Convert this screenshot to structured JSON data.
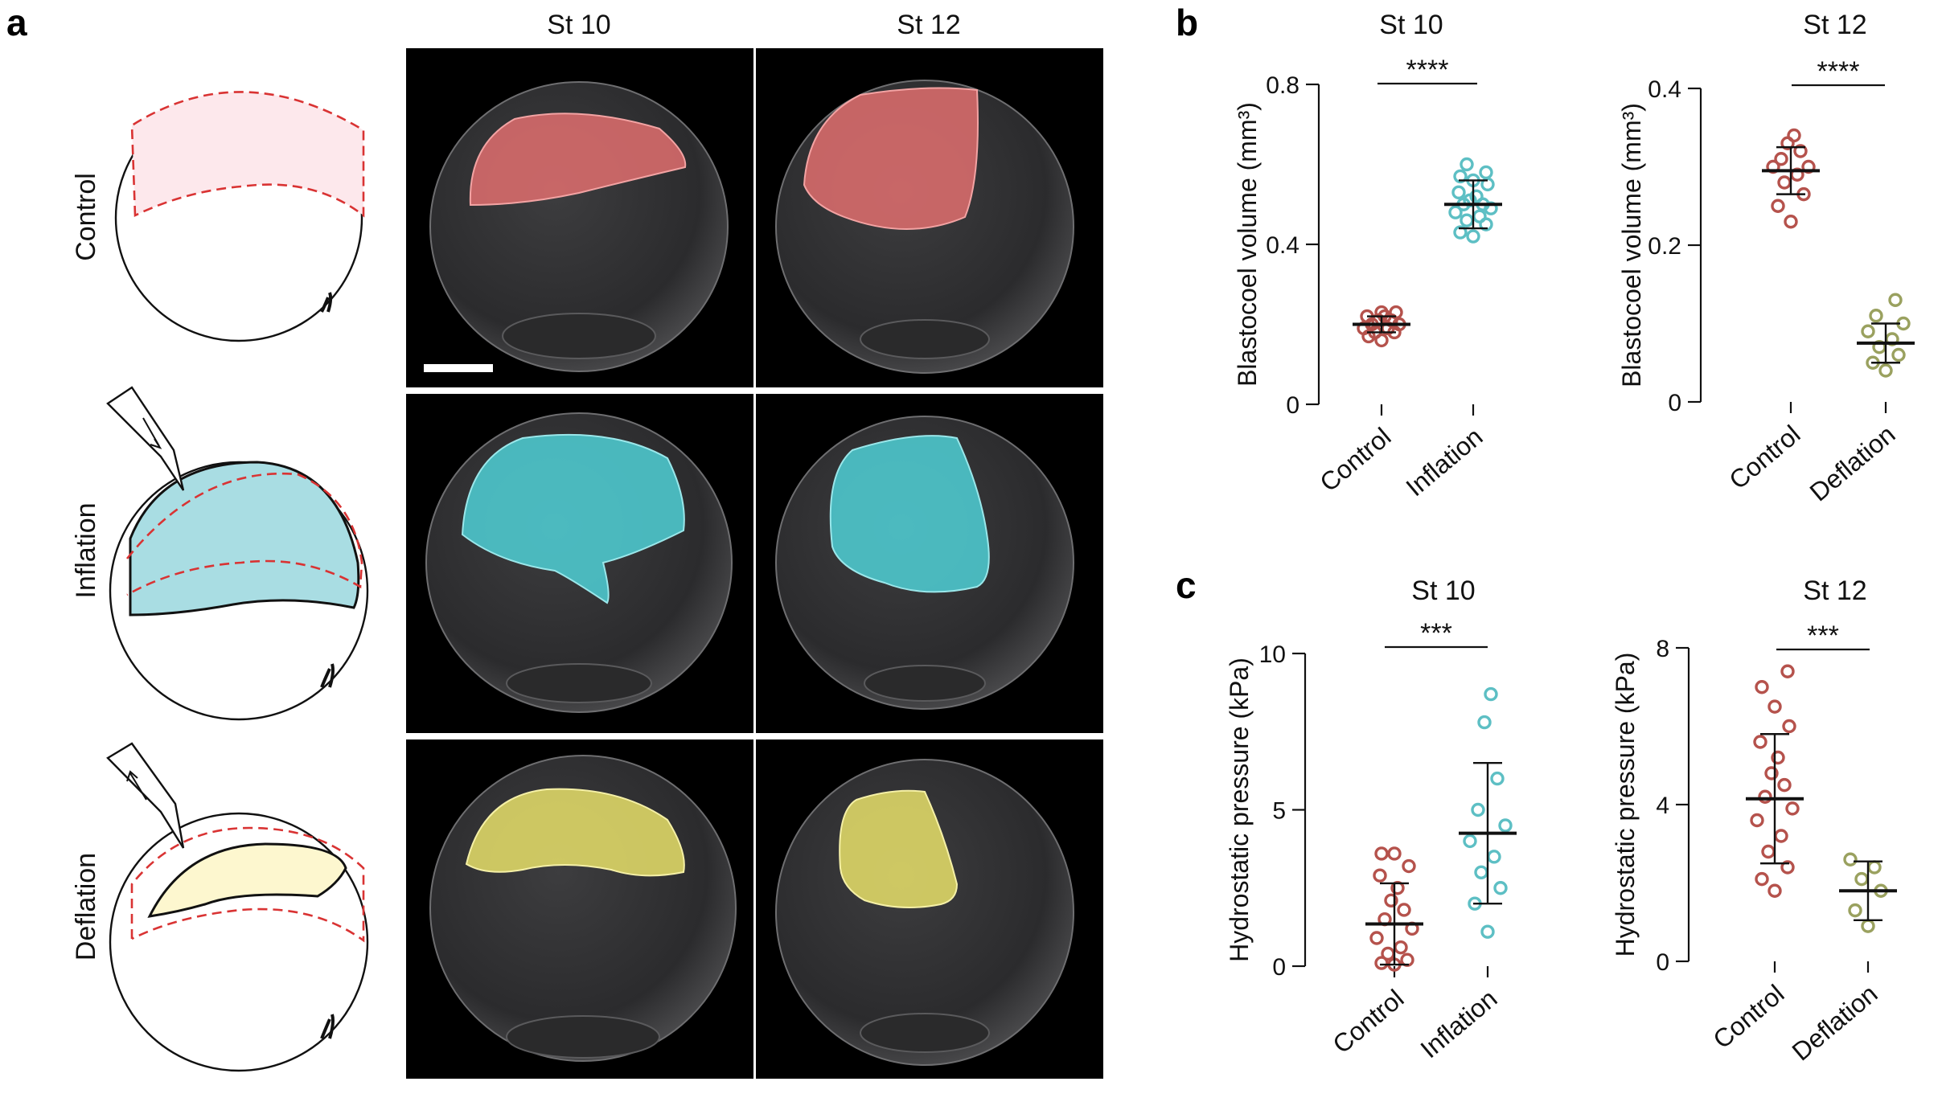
{
  "panel_letters": {
    "a": "a",
    "b": "b",
    "c": "c"
  },
  "panel_a": {
    "columns": [
      "St 10",
      "St 12"
    ],
    "rows": [
      "Control",
      "Inflation",
      "Deflation"
    ],
    "colors": {
      "control": "#e06f6f",
      "inflation": "#4fd0d6",
      "deflation": "#e8e06a",
      "schematic_control_fill": "#fde8ec",
      "schematic_inflation_fill": "#a9dde3",
      "schematic_deflation_fill": "#fdf7cf",
      "dashed_outline": "#d93333"
    }
  },
  "chart_data": [
    {
      "id": "b-st10",
      "type": "scatter",
      "title": "St 10",
      "xlabel": "",
      "ylabel": "Blastocoel volume (mm³)",
      "ylim": [
        0,
        0.8
      ],
      "yticks": [
        "0",
        "0.4",
        "0.8"
      ],
      "categories": [
        "Control",
        "Inflation"
      ],
      "significance": "****",
      "series": [
        {
          "color": "#b5524c",
          "mean": 0.2,
          "err": [
            0.18,
            0.22
          ],
          "values": [
            0.16,
            0.17,
            0.18,
            0.18,
            0.19,
            0.19,
            0.2,
            0.2,
            0.21,
            0.21,
            0.22,
            0.22,
            0.23,
            0.23
          ]
        },
        {
          "color": "#5dbfc4",
          "mean": 0.5,
          "err": [
            0.44,
            0.56
          ],
          "values": [
            0.42,
            0.43,
            0.45,
            0.46,
            0.47,
            0.48,
            0.49,
            0.5,
            0.5,
            0.51,
            0.52,
            0.53,
            0.55,
            0.56,
            0.57,
            0.58,
            0.6
          ]
        }
      ]
    },
    {
      "id": "b-st12",
      "type": "scatter",
      "title": "St 12",
      "xlabel": "",
      "ylabel": "Blastocoel volume (mm³)",
      "ylim": [
        0,
        0.4
      ],
      "yticks": [
        "0",
        "0.2",
        "0.4"
      ],
      "categories": [
        "Control",
        "Deflation"
      ],
      "significance": "****",
      "series": [
        {
          "color": "#b5524c",
          "mean": 0.295,
          "err": [
            0.265,
            0.325
          ],
          "values": [
            0.23,
            0.25,
            0.265,
            0.28,
            0.29,
            0.3,
            0.3,
            0.31,
            0.32,
            0.33,
            0.34
          ]
        },
        {
          "color": "#9aa15f",
          "mean": 0.075,
          "err": [
            0.05,
            0.1
          ],
          "values": [
            0.04,
            0.05,
            0.06,
            0.07,
            0.08,
            0.09,
            0.1,
            0.11,
            0.13
          ]
        }
      ]
    },
    {
      "id": "c-st10",
      "type": "scatter",
      "title": "St 10",
      "xlabel": "",
      "ylabel": "Hydrostatic pressure (kPa)",
      "ylim": [
        0,
        10
      ],
      "yticks": [
        "0",
        "5",
        "10"
      ],
      "categories": [
        "Control",
        "Inflation"
      ],
      "significance": "***",
      "series": [
        {
          "color": "#b5524c",
          "mean": 1.35,
          "err": [
            0.05,
            2.65
          ],
          "values": [
            0.05,
            0.1,
            0.2,
            0.4,
            0.6,
            0.9,
            1.2,
            1.5,
            1.8,
            2.1,
            2.5,
            2.9,
            3.2,
            3.6,
            3.6
          ]
        },
        {
          "color": "#5dbfc4",
          "mean": 4.25,
          "err": [
            2.0,
            6.5
          ],
          "values": [
            1.1,
            2.0,
            2.5,
            3.0,
            3.5,
            4.0,
            4.5,
            5.0,
            6.0,
            7.8,
            8.7
          ]
        }
      ]
    },
    {
      "id": "c-st12",
      "type": "scatter",
      "title": "St 12",
      "xlabel": "",
      "ylabel": "Hydrostatic pressure (kPa)",
      "ylim": [
        0,
        8
      ],
      "yticks": [
        "0",
        "4",
        "8"
      ],
      "categories": [
        "Control",
        "Deflation"
      ],
      "significance": "***",
      "series": [
        {
          "color": "#b5524c",
          "mean": 4.15,
          "err": [
            2.5,
            5.8
          ],
          "values": [
            1.8,
            2.1,
            2.4,
            2.8,
            3.2,
            3.6,
            3.9,
            4.2,
            4.5,
            4.8,
            5.2,
            5.6,
            6.0,
            6.5,
            7.0,
            7.4
          ]
        },
        {
          "color": "#9aa15f",
          "mean": 1.8,
          "err": [
            1.05,
            2.55
          ],
          "values": [
            0.9,
            1.3,
            1.8,
            2.1,
            2.4,
            2.6
          ]
        }
      ]
    }
  ]
}
